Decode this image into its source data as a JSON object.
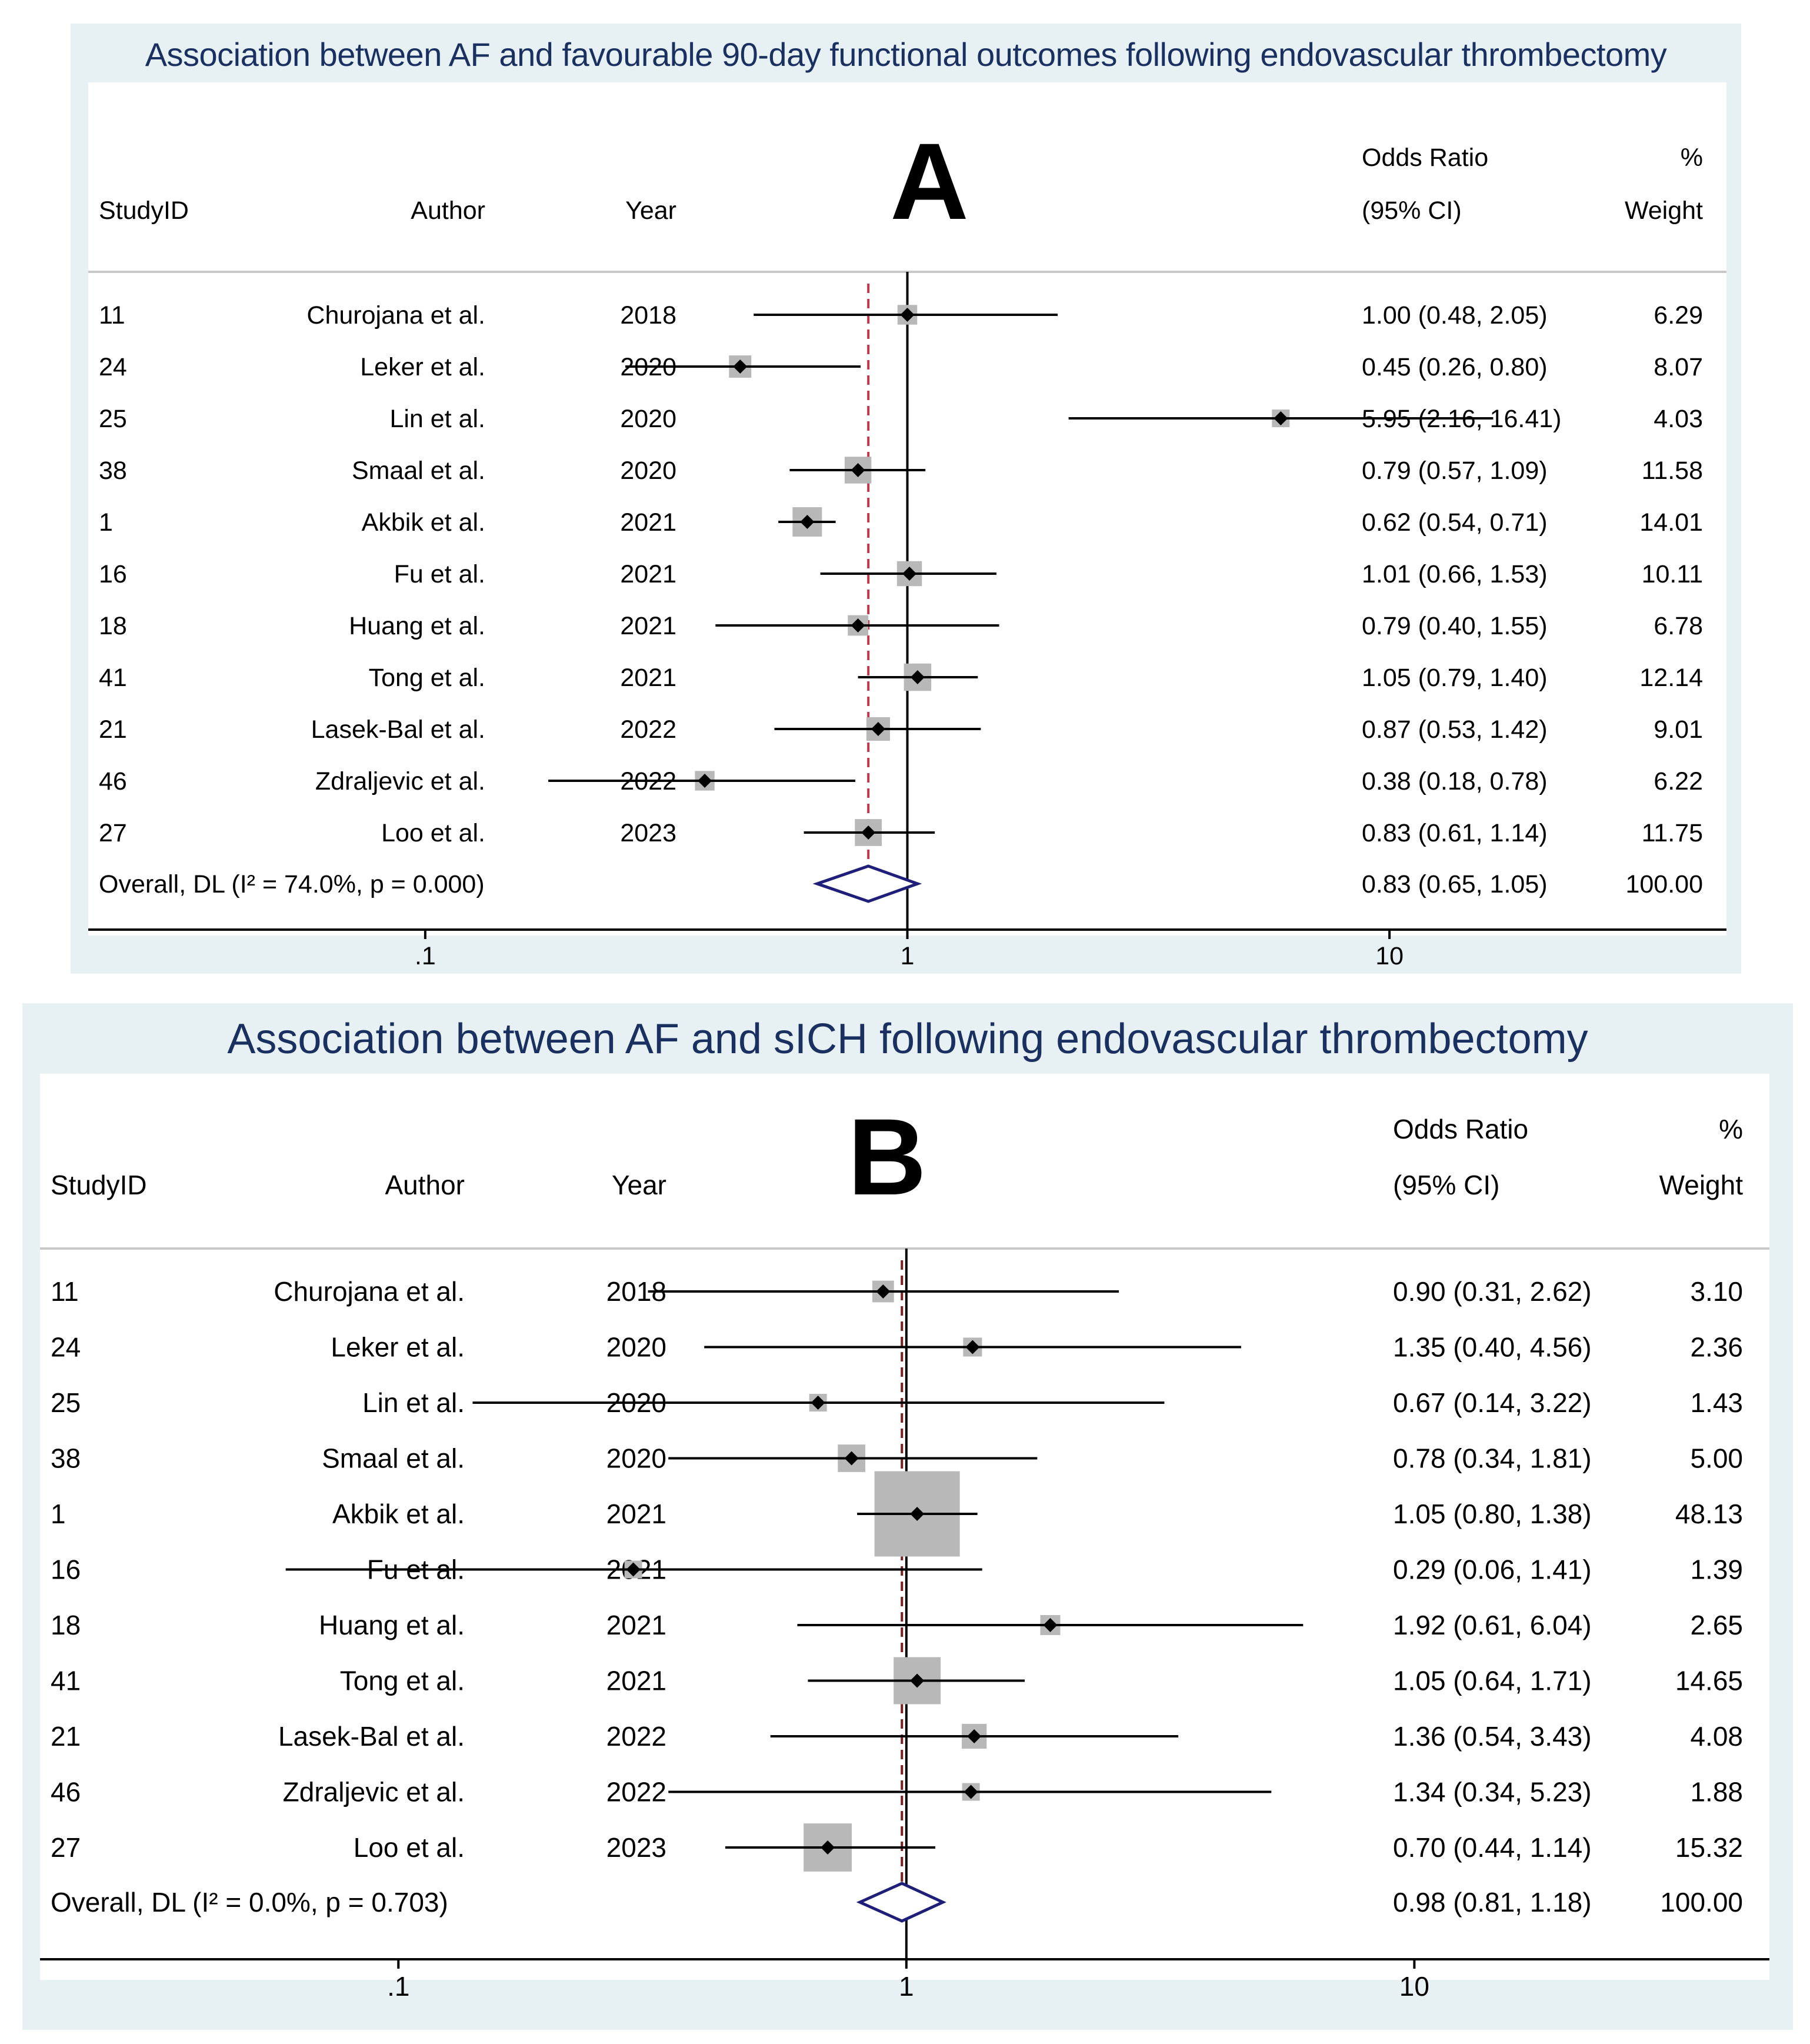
{
  "panels": [
    {
      "title": "Association between AF and favourable 90-day functional outcomes following endovascular thrombectomy",
      "letter": "A",
      "headers": {
        "study_id": "StudyID",
        "author": "Author",
        "year": "Year",
        "or_line1": "Odds Ratio",
        "or_line2": "(95% CI)",
        "weight_line1": "%",
        "weight_line2": "Weight"
      }
    },
    {
      "title": "Association between AF and sICH following endovascular thrombectomy",
      "letter": "B",
      "headers": {
        "study_id": "StudyID",
        "author": "Author",
        "year": "Year",
        "or_line1": "Odds Ratio",
        "or_line2": "(95% CI)",
        "weight_line1": "%",
        "weight_line2": "Weight"
      }
    }
  ],
  "chart_data": [
    {
      "type": "forest",
      "title": "Association between AF and favourable 90-day functional outcomes following endovascular thrombectomy",
      "x_scale": "log",
      "x_ticks": [
        0.1,
        1,
        10
      ],
      "x_tick_labels": [
        ".1",
        "1",
        "10"
      ],
      "xlim": [
        0.02,
        50
      ],
      "null_line": 1,
      "studies": [
        {
          "study_id": "11",
          "author": "Churojana et al.",
          "year": "2018",
          "or": 1.0,
          "lo": 0.48,
          "hi": 2.05,
          "or_text": "1.00 (0.48, 2.05)",
          "weight": 6.29,
          "weight_text": "6.29"
        },
        {
          "study_id": "24",
          "author": "Leker et al.",
          "year": "2020",
          "or": 0.45,
          "lo": 0.26,
          "hi": 0.8,
          "or_text": "0.45 (0.26, 0.80)",
          "weight": 8.07,
          "weight_text": "8.07"
        },
        {
          "study_id": "25",
          "author": "Lin et al.",
          "year": "2020",
          "or": 5.95,
          "lo": 2.16,
          "hi": 16.41,
          "or_text": "5.95 (2.16, 16.41)",
          "weight": 4.03,
          "weight_text": "4.03"
        },
        {
          "study_id": "38",
          "author": "Smaal et al.",
          "year": "2020",
          "or": 0.79,
          "lo": 0.57,
          "hi": 1.09,
          "or_text": "0.79 (0.57, 1.09)",
          "weight": 11.58,
          "weight_text": "11.58"
        },
        {
          "study_id": "1",
          "author": "Akbik et al.",
          "year": "2021",
          "or": 0.62,
          "lo": 0.54,
          "hi": 0.71,
          "or_text": "0.62 (0.54, 0.71)",
          "weight": 14.01,
          "weight_text": "14.01"
        },
        {
          "study_id": "16",
          "author": "Fu et al.",
          "year": "2021",
          "or": 1.01,
          "lo": 0.66,
          "hi": 1.53,
          "or_text": "1.01 (0.66, 1.53)",
          "weight": 10.11,
          "weight_text": "10.11"
        },
        {
          "study_id": "18",
          "author": "Huang et al.",
          "year": "2021",
          "or": 0.79,
          "lo": 0.4,
          "hi": 1.55,
          "or_text": "0.79 (0.40, 1.55)",
          "weight": 6.78,
          "weight_text": "6.78"
        },
        {
          "study_id": "41",
          "author": "Tong et al.",
          "year": "2021",
          "or": 1.05,
          "lo": 0.79,
          "hi": 1.4,
          "or_text": "1.05 (0.79, 1.40)",
          "weight": 12.14,
          "weight_text": "12.14"
        },
        {
          "study_id": "21",
          "author": "Lasek-Bal et al.",
          "year": "2022",
          "or": 0.87,
          "lo": 0.53,
          "hi": 1.42,
          "or_text": "0.87 (0.53, 1.42)",
          "weight": 9.01,
          "weight_text": "9.01"
        },
        {
          "study_id": "46",
          "author": "Zdraljevic et al.",
          "year": "2022",
          "or": 0.38,
          "lo": 0.18,
          "hi": 0.78,
          "or_text": "0.38 (0.18, 0.78)",
          "weight": 6.22,
          "weight_text": "6.22"
        },
        {
          "study_id": "27",
          "author": "Loo et al.",
          "year": "2023",
          "or": 0.83,
          "lo": 0.61,
          "hi": 1.14,
          "or_text": "0.83 (0.61, 1.14)",
          "weight": 11.75,
          "weight_text": "11.75"
        }
      ],
      "overall": {
        "label": "Overall, DL (I² = 74.0%, p = 0.000)",
        "or": 0.83,
        "lo": 0.65,
        "hi": 1.05,
        "or_text": "0.83 (0.65, 1.05)",
        "weight_text": "100.00"
      },
      "colors": {
        "diamond": "#1f1f7a",
        "pooled_line": "#c0394b",
        "box": "#b8b8b8"
      }
    },
    {
      "type": "forest",
      "title": "Association between AF and sICH following endovascular thrombectomy",
      "x_scale": "log",
      "x_ticks": [
        0.1,
        1,
        10
      ],
      "x_tick_labels": [
        ".1",
        "1",
        "10"
      ],
      "xlim": [
        0.0197,
        50
      ],
      "null_line": 1,
      "studies": [
        {
          "study_id": "11",
          "author": "Churojana et al.",
          "year": "2018",
          "or": 0.9,
          "lo": 0.31,
          "hi": 2.62,
          "or_text": "0.90 (0.31, 2.62)",
          "weight": 3.1,
          "weight_text": "3.10"
        },
        {
          "study_id": "24",
          "author": "Leker et al.",
          "year": "2020",
          "or": 1.35,
          "lo": 0.4,
          "hi": 4.56,
          "or_text": "1.35 (0.40, 4.56)",
          "weight": 2.36,
          "weight_text": "2.36"
        },
        {
          "study_id": "25",
          "author": "Lin et al.",
          "year": "2020",
          "or": 0.67,
          "lo": 0.14,
          "hi": 3.22,
          "or_text": "0.67 (0.14, 3.22)",
          "weight": 1.43,
          "weight_text": "1.43"
        },
        {
          "study_id": "38",
          "author": "Smaal et al.",
          "year": "2020",
          "or": 0.78,
          "lo": 0.34,
          "hi": 1.81,
          "or_text": "0.78 (0.34, 1.81)",
          "weight": 5.0,
          "weight_text": "5.00"
        },
        {
          "study_id": "1",
          "author": "Akbik et al.",
          "year": "2021",
          "or": 1.05,
          "lo": 0.8,
          "hi": 1.38,
          "or_text": "1.05 (0.80, 1.38)",
          "weight": 48.13,
          "weight_text": "48.13"
        },
        {
          "study_id": "16",
          "author": "Fu et al.",
          "year": "2021",
          "or": 0.29,
          "lo": 0.06,
          "hi": 1.41,
          "or_text": "0.29 (0.06, 1.41)",
          "weight": 1.39,
          "weight_text": "1.39"
        },
        {
          "study_id": "18",
          "author": "Huang et al.",
          "year": "2021",
          "or": 1.92,
          "lo": 0.61,
          "hi": 6.04,
          "or_text": "1.92 (0.61, 6.04)",
          "weight": 2.65,
          "weight_text": "2.65"
        },
        {
          "study_id": "41",
          "author": "Tong et al.",
          "year": "2021",
          "or": 1.05,
          "lo": 0.64,
          "hi": 1.71,
          "or_text": "1.05 (0.64, 1.71)",
          "weight": 14.65,
          "weight_text": "14.65"
        },
        {
          "study_id": "21",
          "author": "Lasek-Bal et al.",
          "year": "2022",
          "or": 1.36,
          "lo": 0.54,
          "hi": 3.43,
          "or_text": "1.36 (0.54, 3.43)",
          "weight": 4.08,
          "weight_text": "4.08"
        },
        {
          "study_id": "46",
          "author": "Zdraljevic et al.",
          "year": "2022",
          "or": 1.34,
          "lo": 0.34,
          "hi": 5.23,
          "or_text": "1.34 (0.34, 5.23)",
          "weight": 1.88,
          "weight_text": "1.88"
        },
        {
          "study_id": "27",
          "author": "Loo et al.",
          "year": "2023",
          "or": 0.7,
          "lo": 0.44,
          "hi": 1.14,
          "or_text": "0.70 (0.44, 1.14)",
          "weight": 15.32,
          "weight_text": "15.32"
        }
      ],
      "overall": {
        "label": "Overall, DL (I² = 0.0%, p = 0.703)",
        "or": 0.98,
        "lo": 0.81,
        "hi": 1.18,
        "or_text": "0.98 (0.81, 1.18)",
        "weight_text": "100.00"
      },
      "colors": {
        "diamond": "#1f1f7a",
        "pooled_line": "#7a1f1f",
        "box": "#b8b8b8"
      }
    }
  ]
}
